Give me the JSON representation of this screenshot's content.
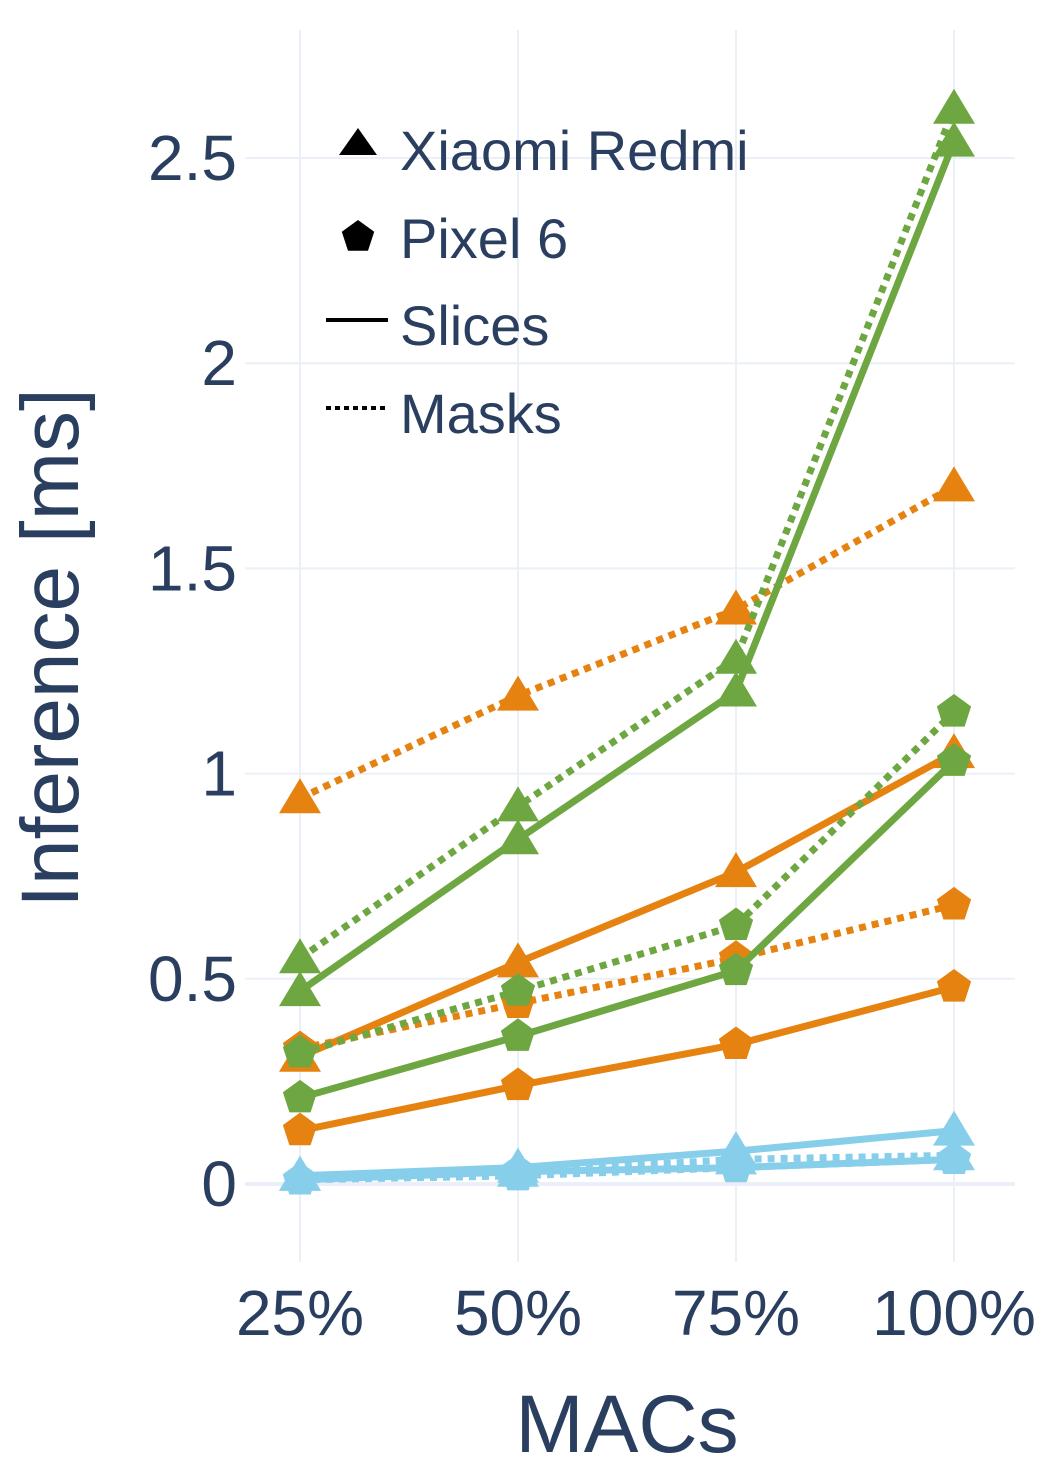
{
  "chart_data": {
    "type": "line",
    "xlabel": "MACs",
    "ylabel": "Inference [ms]",
    "categories": [
      "25%",
      "50%",
      "75%",
      "100%"
    ],
    "ylim": [
      -0.18,
      2.8
    ],
    "yticks": [
      0,
      0.5,
      1,
      1.5,
      2,
      2.5
    ],
    "ytick_labels": [
      "0",
      "0.5",
      "1",
      "1.5",
      "2",
      "2.5"
    ],
    "grid": true,
    "legend_position": "top-left",
    "legend": [
      {
        "label": "Xiaomi Redmi",
        "symbol": "triangle"
      },
      {
        "label": "Pixel 6",
        "symbol": "pentagon"
      },
      {
        "label": "Slices",
        "symbol": "solid-line"
      },
      {
        "label": "Masks",
        "symbol": "dotted-line"
      }
    ],
    "series": [
      {
        "color": "#e6820f",
        "marker": "triangle",
        "dash": "dot",
        "values": [
          0.94,
          1.19,
          1.4,
          1.7
        ]
      },
      {
        "color": "#e6820f",
        "marker": "triangle",
        "dash": "solid",
        "values": [
          0.31,
          0.54,
          0.76,
          1.05
        ]
      },
      {
        "color": "#e6820f",
        "marker": "pentagon",
        "dash": "dot",
        "values": [
          0.33,
          0.44,
          0.55,
          0.68
        ]
      },
      {
        "color": "#e6820f",
        "marker": "pentagon",
        "dash": "solid",
        "values": [
          0.13,
          0.24,
          0.34,
          0.48
        ]
      },
      {
        "color": "#6ea641",
        "marker": "triangle",
        "dash": "dot",
        "values": [
          0.55,
          0.92,
          1.28,
          2.62
        ]
      },
      {
        "color": "#6ea641",
        "marker": "triangle",
        "dash": "solid",
        "values": [
          0.47,
          0.84,
          1.2,
          2.54
        ]
      },
      {
        "color": "#6ea641",
        "marker": "pentagon",
        "dash": "dot",
        "values": [
          0.32,
          0.47,
          0.63,
          1.15
        ]
      },
      {
        "color": "#6ea641",
        "marker": "pentagon",
        "dash": "solid",
        "values": [
          0.21,
          0.36,
          0.52,
          1.03
        ]
      },
      {
        "color": "#87ceeb",
        "marker": "triangle",
        "dash": "dot",
        "values": [
          0.02,
          0.03,
          0.06,
          0.07
        ]
      },
      {
        "color": "#87ceeb",
        "marker": "triangle",
        "dash": "solid",
        "values": [
          0.02,
          0.04,
          0.08,
          0.13
        ]
      },
      {
        "color": "#87ceeb",
        "marker": "pentagon",
        "dash": "dot",
        "values": [
          0.01,
          0.02,
          0.04,
          0.06
        ]
      },
      {
        "color": "#87ceeb",
        "marker": "pentagon",
        "dash": "solid",
        "values": [
          0.01,
          0.03,
          0.04,
          0.06
        ]
      }
    ]
  }
}
